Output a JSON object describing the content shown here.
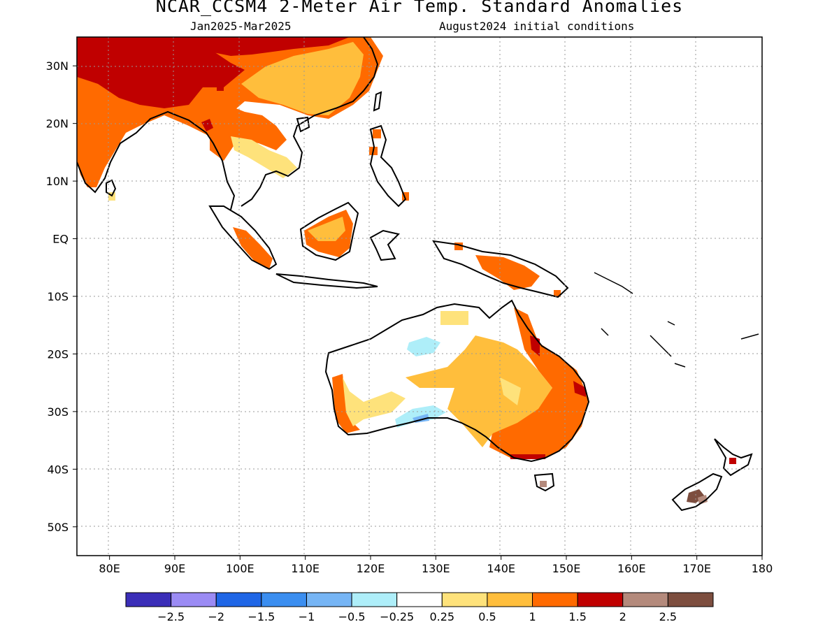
{
  "title": "NCAR_CCSM4 2-Meter Air Temp. Standard Anomalies",
  "subtitle_left": "Jan2025-Mar2025",
  "subtitle_right": "August2024 initial conditions",
  "map": {
    "lon_range": [
      75,
      180
    ],
    "lat_range": [
      -55,
      35
    ],
    "lon_ticks": [
      {
        "value": 80,
        "label": "80E"
      },
      {
        "value": 90,
        "label": "90E"
      },
      {
        "value": 100,
        "label": "100E"
      },
      {
        "value": 110,
        "label": "110E"
      },
      {
        "value": 120,
        "label": "120E"
      },
      {
        "value": 130,
        "label": "130E"
      },
      {
        "value": 140,
        "label": "140E"
      },
      {
        "value": 150,
        "label": "150E"
      },
      {
        "value": 160,
        "label": "160E"
      },
      {
        "value": 170,
        "label": "170E"
      },
      {
        "value": 180,
        "label": "180"
      }
    ],
    "lat_ticks": [
      {
        "value": 30,
        "label": "30N"
      },
      {
        "value": 20,
        "label": "20N"
      },
      {
        "value": 10,
        "label": "10N"
      },
      {
        "value": 0,
        "label": "EQ"
      },
      {
        "value": -10,
        "label": "10S"
      },
      {
        "value": -20,
        "label": "20S"
      },
      {
        "value": -30,
        "label": "30S"
      },
      {
        "value": -40,
        "label": "40S"
      },
      {
        "value": -50,
        "label": "50S"
      }
    ],
    "grid": "dotted"
  },
  "colorbar": {
    "colors": [
      "#3b2eb8",
      "#9b8bf4",
      "#1f66e6",
      "#3b8ef0",
      "#76b5f5",
      "#aeeef9",
      "#ffffff",
      "#fee27b",
      "#ffbe3c",
      "#ff6a00",
      "#c00000",
      "#b48a7c",
      "#7d4e3f"
    ],
    "labels": [
      "-2.5",
      "-2",
      "-1.5",
      "-1",
      "-0.5",
      "-0.25",
      "0.25",
      "0.5",
      "1",
      "1.5",
      "2",
      "2.5"
    ]
  }
}
